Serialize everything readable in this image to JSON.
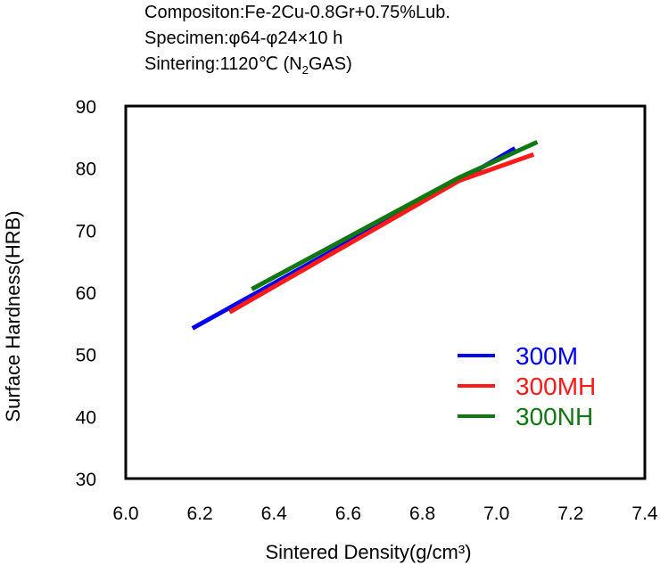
{
  "header": {
    "composition": "Compositon:Fe-2Cu-0.8Gr+0.75%Lub.",
    "specimen": "Specimen:φ64-φ24×10 h",
    "sintering_prefix": "Sintering:1120℃ (N",
    "sintering_sub": "2",
    "sintering_suffix": "GAS)"
  },
  "chart_data": {
    "type": "line",
    "xlabel": "Sintered Density(g/cm³)",
    "ylabel": "Surface Hardness(HRB)",
    "xlim": [
      6.0,
      7.4
    ],
    "ylim": [
      30,
      90
    ],
    "xticks": [
      "6.0",
      "6.2",
      "6.4",
      "6.6",
      "6.8",
      "7.0",
      "7.2",
      "7.4"
    ],
    "yticks": [
      "30",
      "40",
      "50",
      "60",
      "70",
      "80",
      "90"
    ],
    "grid": false,
    "legend_position": "bottom-right",
    "series": [
      {
        "name": "300M",
        "color": "#0000ee",
        "x": [
          6.18,
          6.9,
          7.05
        ],
        "y": [
          54.2,
          78.0,
          83.2
        ]
      },
      {
        "name": "300MH",
        "color": "#ff1a1a",
        "x": [
          6.28,
          6.9,
          7.1
        ],
        "y": [
          56.8,
          78.0,
          82.2
        ]
      },
      {
        "name": "300NH",
        "color": "#117711",
        "x": [
          6.34,
          6.9,
          7.11
        ],
        "y": [
          60.5,
          78.5,
          84.2
        ]
      }
    ]
  }
}
